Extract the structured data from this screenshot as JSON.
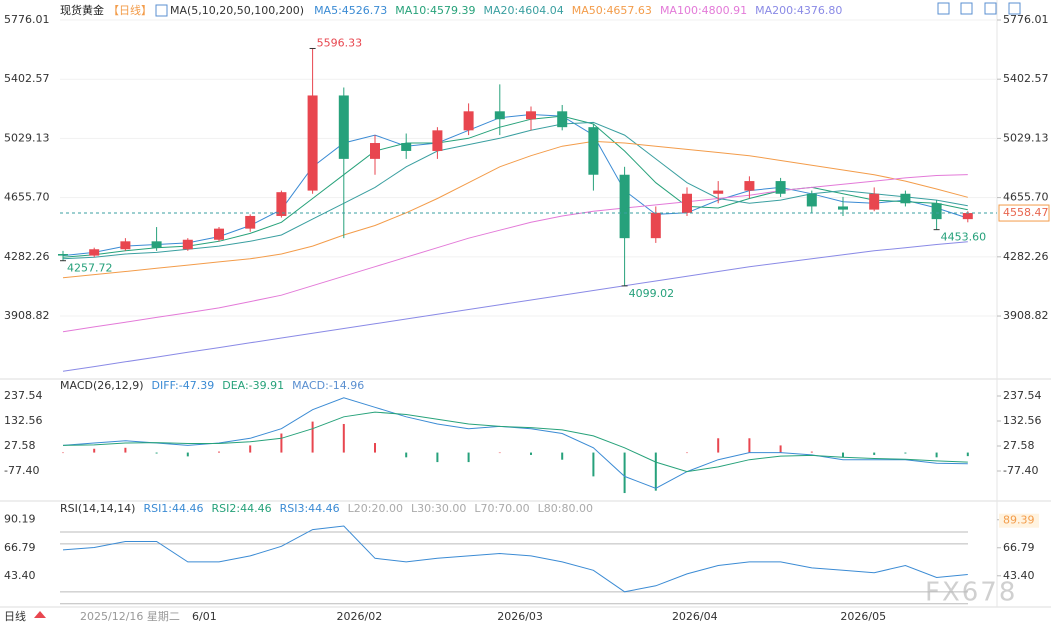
{
  "header": {
    "symbol": "现货黄金",
    "period": "【日线】",
    "indicator": "MA(5,10,20,50,100,200)"
  },
  "chart_data": [
    {
      "type": "candlestick",
      "up_color": "#e8464f",
      "down_color": "#26a17b",
      "grid": true,
      "ylim": [
        3518,
        5839
      ],
      "yticks": [
        5776.01,
        5402.57,
        5029.13,
        {
          "value": 4655.7,
          "label": "4655.70"
        },
        4282.26,
        3908.82
      ],
      "categories": [
        null,
        null,
        null,
        null,
        null,
        null,
        null,
        null,
        null,
        null,
        null,
        null,
        null,
        null,
        null,
        null,
        null,
        null,
        null,
        null,
        null,
        null,
        null,
        null,
        null,
        null,
        null,
        null,
        null,
        null
      ],
      "xticks": [
        {
          "value": 9.5,
          "label": "2026/02"
        },
        {
          "value": 14.65,
          "label": "2026/03"
        },
        {
          "value": 20.25,
          "label": "2026/04"
        },
        {
          "value": 25.65,
          "label": "2026/05"
        }
      ],
      "open": [
        4300,
        4290,
        4330,
        4380,
        4330,
        4390,
        4460,
        4540,
        4700,
        5300,
        4900,
        5000,
        4950,
        5080,
        5200,
        5150,
        5200,
        5100,
        4800,
        4400,
        4560,
        4680,
        4700,
        4760,
        4680,
        4600,
        4580,
        4680,
        4620,
        4520
      ],
      "high": [
        4320,
        4340,
        4400,
        4470,
        4400,
        4470,
        4550,
        4700,
        5596.33,
        5350,
        5050,
        5060,
        5100,
        5250,
        5370,
        5230,
        5240,
        5120,
        4850,
        4600,
        4720,
        4760,
        4790,
        4780,
        4700,
        4660,
        4720,
        4700,
        4640,
        4570
      ],
      "low": [
        4257.72,
        4280,
        4320,
        4320,
        4320,
        4380,
        4440,
        4530,
        4680,
        4400,
        4800,
        4900,
        4900,
        5050,
        5050,
        5080,
        5080,
        4700,
        4099.02,
        4370,
        4540,
        4620,
        4650,
        4660,
        4560,
        4540,
        4570,
        4600,
        4453.6,
        4500
      ],
      "close": [
        4290,
        4330,
        4380,
        4340,
        4390,
        4460,
        4540,
        4690,
        5300,
        4900,
        5000,
        4950,
        5080,
        5200,
        5150,
        5200,
        5100,
        4800,
        4400,
        4560,
        4680,
        4700,
        4760,
        4680,
        4600,
        4580,
        4680,
        4620,
        4520,
        4558.47
      ],
      "last_price": 4558.47,
      "annotations": [
        {
          "index": 8,
          "value": 5596.33,
          "label": "5596.33",
          "kind": "high"
        },
        {
          "index": 0,
          "value": 4257.72,
          "label": "4257.72",
          "kind": "low"
        },
        {
          "index": 18,
          "value": 4099.02,
          "label": "4099.02",
          "kind": "low"
        },
        {
          "index": 28,
          "value": 4453.6,
          "label": "4453.60",
          "kind": "low"
        }
      ],
      "series": [
        {
          "name": "MA5:4526.73",
          "color": "#3b8bd4",
          "values": [
            4290,
            4310,
            4350,
            4360,
            4370,
            4410,
            4480,
            4580,
            4850,
            5000,
            5050,
            4980,
            5000,
            5080,
            5160,
            5180,
            5170,
            5050,
            4700,
            4550,
            4560,
            4640,
            4700,
            4720,
            4680,
            4630,
            4620,
            4640,
            4590,
            4526.73
          ]
        },
        {
          "name": "MA10:4579.39",
          "color": "#27a27a",
          "values": [
            4280,
            4295,
            4320,
            4340,
            4350,
            4380,
            4430,
            4500,
            4650,
            4800,
            4950,
            5000,
            5000,
            5030,
            5100,
            5150,
            5170,
            5120,
            4950,
            4750,
            4600,
            4590,
            4650,
            4700,
            4720,
            4680,
            4640,
            4630,
            4620,
            4579.39
          ]
        },
        {
          "name": "MA20:4604.04",
          "color": "#3a9fa0",
          "values": [
            4270,
            4280,
            4300,
            4310,
            4330,
            4350,
            4380,
            4420,
            4520,
            4620,
            4720,
            4850,
            4950,
            4990,
            5030,
            5080,
            5120,
            5130,
            5050,
            4900,
            4750,
            4650,
            4620,
            4640,
            4680,
            4700,
            4680,
            4660,
            4640,
            4604.04
          ]
        },
        {
          "name": "MA50:4657.63",
          "color": "#f39c4a",
          "values": [
            4150,
            4170,
            4190,
            4210,
            4230,
            4250,
            4270,
            4300,
            4350,
            4420,
            4480,
            4560,
            4650,
            4750,
            4850,
            4920,
            4980,
            5010,
            5000,
            4980,
            4960,
            4940,
            4920,
            4890,
            4860,
            4830,
            4800,
            4760,
            4710,
            4657.63
          ]
        },
        {
          "name": "MA100:4800.91",
          "color": "#e37ad8",
          "values": [
            3810,
            3840,
            3870,
            3900,
            3930,
            3960,
            4000,
            4040,
            4100,
            4160,
            4220,
            4280,
            4340,
            4400,
            4450,
            4500,
            4540,
            4570,
            4590,
            4610,
            4630,
            4650,
            4670,
            4700,
            4720,
            4740,
            4760,
            4780,
            4795,
            4800.91
          ]
        },
        {
          "name": "MA200:4376.80",
          "color": "#8a8ae6",
          "values": [
            3560,
            3590,
            3620,
            3650,
            3680,
            3710,
            3740,
            3770,
            3800,
            3830,
            3860,
            3890,
            3920,
            3950,
            3980,
            4010,
            4040,
            4070,
            4100,
            4130,
            4160,
            4190,
            4220,
            4245,
            4270,
            4295,
            4320,
            4340,
            4360,
            4376.8
          ]
        }
      ]
    },
    {
      "type": "macd",
      "title": "MACD(26,12,9)",
      "up_color": "#e8464f",
      "down_color": "#26a17b",
      "ylim": [
        -190.8,
        304.7
      ],
      "yticks": [
        237.54,
        132.56,
        27.58,
        {
          "value": -77.4,
          "label": "-77.40"
        }
      ],
      "series": [
        {
          "name": "DIFF:-47.39",
          "color": "#3b8bd4",
          "values": [
            30,
            40,
            50,
            40,
            30,
            40,
            60,
            100,
            180,
            230,
            190,
            150,
            120,
            100,
            110,
            100,
            80,
            20,
            -100,
            -150,
            -80,
            -30,
            0,
            0,
            -10,
            -30,
            -30,
            -30,
            -45,
            -47.39
          ]
        },
        {
          "name": "DEA:-39.91",
          "color": "#27a27a",
          "values": [
            30,
            32,
            40,
            42,
            38,
            38,
            45,
            60,
            100,
            150,
            170,
            160,
            140,
            120,
            110,
            105,
            95,
            70,
            20,
            -40,
            -80,
            -60,
            -30,
            -15,
            -12,
            -20,
            -25,
            -28,
            -35,
            -39.91
          ]
        }
      ],
      "histogram": {
        "name": "MACD:-14.96",
        "color": "#5a8fd0",
        "values": [
          0,
          16,
          20,
          -4,
          -16,
          4,
          30,
          80,
          130,
          120,
          40,
          -20,
          -40,
          -40,
          0,
          -10,
          -30,
          -100,
          -170,
          -160,
          0,
          60,
          60,
          30,
          4,
          -20,
          -10,
          -4,
          -20,
          -14.96
        ]
      }
    },
    {
      "type": "line",
      "title": "RSI(14,14,14)",
      "ylim": [
        19,
        102.5
      ],
      "yticks": [
        90.19,
        66.79,
        {
          "value": 43.4,
          "label": "43.40"
        }
      ],
      "marker": 89.39,
      "series": [
        {
          "name": "RSI1:44.46",
          "color": "#3b8bd4",
          "values": [
            65,
            67,
            72,
            72,
            55,
            55,
            60,
            68,
            82,
            85,
            58,
            55,
            58,
            60,
            62,
            60,
            55,
            48,
            30,
            35,
            45,
            52,
            55,
            55,
            50,
            48,
            46,
            52,
            42,
            44.46
          ]
        }
      ],
      "legend_extra": [
        {
          "label": "RSI2:44.46",
          "color": "#27a27a"
        },
        {
          "label": "RSI3:44.46",
          "color": "#3b8bd4"
        }
      ],
      "levels": [
        {
          "value": 20,
          "label": "L20:20.00"
        },
        {
          "value": 30,
          "label": "L30:30.00"
        },
        {
          "value": 70,
          "label": "L70:70.00"
        },
        {
          "value": 80,
          "label": "L80:80.00"
        }
      ]
    }
  ],
  "footer": {
    "period": "日线",
    "date": "2025/12/16 星期二",
    "extra": "6/01"
  },
  "watermark": "FX678"
}
